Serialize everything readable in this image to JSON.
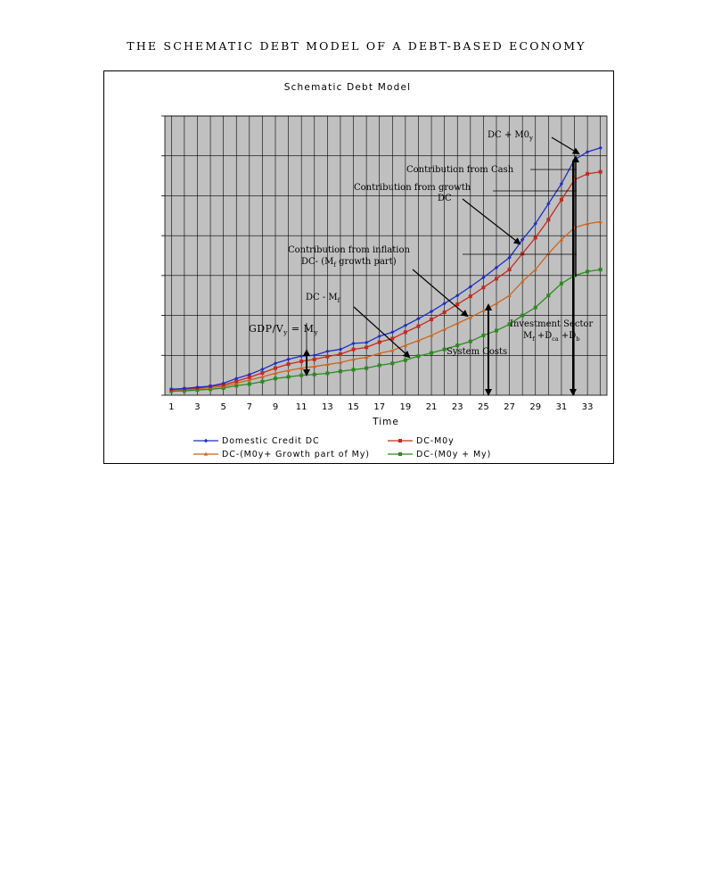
{
  "page": {
    "title": "THE SCHEMATIC DEBT MODEL OF A DEBT-BASED ECONOMY"
  },
  "chart_data": {
    "type": "line",
    "title": "Schematic Debt Model",
    "xlabel": "Time",
    "ylabel": "",
    "x_ticks": [
      "1",
      "3",
      "5",
      "7",
      "9",
      "11",
      "13",
      "15",
      "17",
      "19",
      "21",
      "23",
      "25",
      "27",
      "29",
      "31",
      "33"
    ],
    "xlim": [
      0.5,
      34.5
    ],
    "ylim": [
      0,
      7
    ],
    "grid": true,
    "legend_position": "bottom",
    "x": [
      1,
      2,
      3,
      4,
      5,
      6,
      7,
      8,
      9,
      10,
      11,
      12,
      13,
      14,
      15,
      16,
      17,
      18,
      19,
      20,
      21,
      22,
      23,
      24,
      25,
      26,
      27,
      28,
      29,
      30,
      31,
      32,
      33,
      34
    ],
    "series": [
      {
        "name": "Domestic Credit DC",
        "color": "#1f2fc4",
        "marker": "diamond",
        "values": [
          0.15,
          0.17,
          0.2,
          0.23,
          0.3,
          0.42,
          0.52,
          0.65,
          0.8,
          0.9,
          0.98,
          1.0,
          1.1,
          1.15,
          1.3,
          1.32,
          1.48,
          1.58,
          1.75,
          1.92,
          2.1,
          2.3,
          2.5,
          2.72,
          2.95,
          3.2,
          3.45,
          3.9,
          4.3,
          4.8,
          5.3,
          5.9,
          6.1,
          6.2
        ]
      },
      {
        "name": "DC-M0y",
        "color": "#c42a1e",
        "marker": "square",
        "values": [
          0.14,
          0.16,
          0.18,
          0.22,
          0.26,
          0.35,
          0.45,
          0.56,
          0.68,
          0.78,
          0.85,
          0.9,
          0.97,
          1.03,
          1.15,
          1.2,
          1.33,
          1.42,
          1.58,
          1.73,
          1.9,
          2.08,
          2.28,
          2.48,
          2.7,
          2.92,
          3.15,
          3.55,
          3.95,
          4.4,
          4.9,
          5.4,
          5.55,
          5.6
        ]
      },
      {
        "name": "DC-(M0y+ Growth part of My)",
        "color": "#c9651e",
        "marker": "triangle",
        "values": [
          0.12,
          0.14,
          0.16,
          0.19,
          0.22,
          0.3,
          0.38,
          0.46,
          0.55,
          0.62,
          0.68,
          0.72,
          0.77,
          0.82,
          0.9,
          0.95,
          1.05,
          1.12,
          1.25,
          1.37,
          1.5,
          1.65,
          1.8,
          1.95,
          2.12,
          2.3,
          2.5,
          2.85,
          3.15,
          3.55,
          3.9,
          4.2,
          4.3,
          4.35
        ]
      },
      {
        "name": "DC-(M0y + My)",
        "color": "#2b8a1e",
        "marker": "square",
        "values": [
          0.1,
          0.11,
          0.13,
          0.15,
          0.18,
          0.24,
          0.28,
          0.34,
          0.42,
          0.46,
          0.5,
          0.52,
          0.55,
          0.6,
          0.64,
          0.68,
          0.75,
          0.8,
          0.88,
          0.98,
          1.06,
          1.15,
          1.25,
          1.35,
          1.5,
          1.62,
          1.78,
          2.0,
          2.2,
          2.5,
          2.8,
          3.0,
          3.1,
          3.15
        ]
      }
    ],
    "annotations": {
      "dc_m0y": "DC + M0",
      "dc_m0y_sub": "y",
      "cash": "Contribution from Cash",
      "growth1": "Contribution from growth",
      "growth2": "DC",
      "inflation1": "Contribution from inflation",
      "inflation2": "DC- (M",
      "inflation2_sub": "f",
      "inflation2_end": " growth part)",
      "dc_mf": "DC - M",
      "dc_mf_sub": "f",
      "gdp1": "GDP/V",
      "gdp1_sub": "y",
      "gdp2": " = M",
      "gdp2_sub": "y",
      "system_costs": "System Costs",
      "investment": "Investment Sector",
      "investment2": "M",
      "investment2_sub": "f",
      "investment3": " +D",
      "investment3_sub": "ca",
      "investment4": " +D",
      "investment4_sub": "b"
    }
  }
}
